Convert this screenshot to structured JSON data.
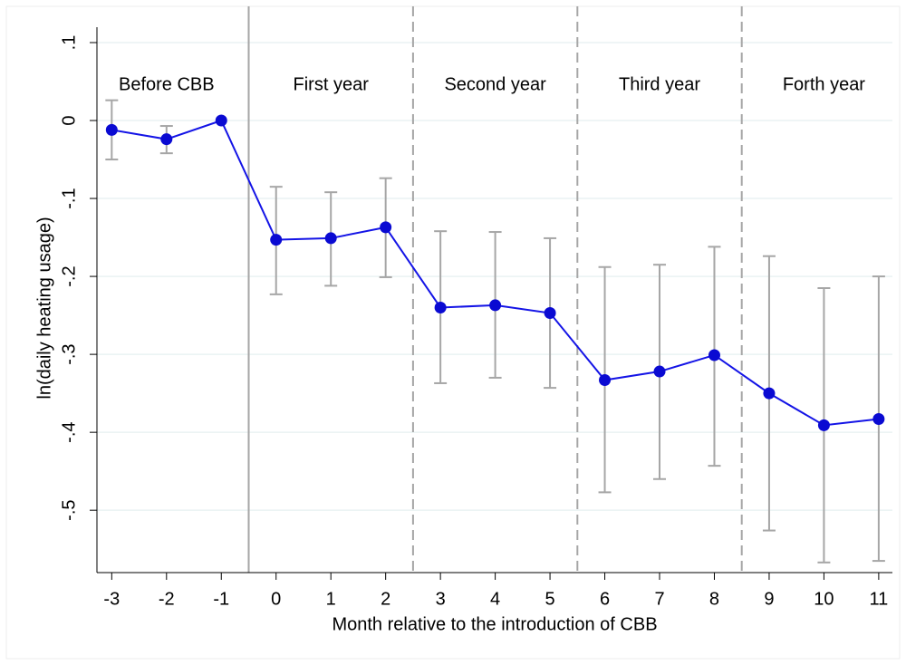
{
  "chart_data": {
    "type": "line",
    "x_label": "Month relative to the introduction of CBB",
    "y_label": "ln(daily heating usage)",
    "x": [
      -3,
      -2,
      -1,
      0,
      1,
      2,
      3,
      4,
      5,
      6,
      7,
      8,
      9,
      10,
      11
    ],
    "series": [
      {
        "color": "#1414e6",
        "marker_color": "#0a0ad2",
        "error_color": "#a6a6a6",
        "values": [
          -0.012,
          -0.024,
          0,
          -0.153,
          -0.151,
          -0.137,
          -0.24,
          -0.237,
          -0.247,
          -0.333,
          -0.322,
          -0.301,
          -0.35,
          -0.391,
          -0.383
        ],
        "ci_high": [
          0.026,
          -0.007,
          null,
          -0.085,
          -0.092,
          -0.074,
          -0.142,
          -0.143,
          -0.151,
          -0.188,
          -0.185,
          -0.162,
          -0.174,
          -0.215,
          -0.2
        ],
        "ci_low": [
          -0.05,
          -0.042,
          null,
          -0.223,
          -0.212,
          -0.201,
          -0.337,
          -0.33,
          -0.343,
          -0.477,
          -0.46,
          -0.443,
          -0.526,
          -0.567,
          -0.565
        ]
      }
    ],
    "xlim": [
      -3.27,
      11.25
    ],
    "ylim": [
      -0.58,
      0.143
    ],
    "xticks": [
      -3,
      -2,
      -1,
      0,
      1,
      2,
      3,
      4,
      5,
      6,
      7,
      8,
      9,
      10,
      11
    ],
    "yticks": [
      {
        "value": 0.1,
        "label": ".1"
      },
      0,
      {
        "value": -0.1,
        "label": "-.1"
      },
      {
        "value": -0.2,
        "label": "-.2"
      },
      {
        "value": -0.3,
        "label": "-.3"
      },
      {
        "value": -0.4,
        "label": "-.4"
      },
      {
        "value": -0.5,
        "label": "-.5"
      }
    ],
    "grid": true,
    "separators": [
      {
        "x": -0.5,
        "style": "solid"
      },
      {
        "x": 2.5,
        "style": "dashed"
      },
      {
        "x": 5.5,
        "style": "dashed"
      },
      {
        "x": 8.5,
        "style": "dashed"
      }
    ],
    "annotations": [
      {
        "x": -2,
        "text": "Before CBB"
      },
      {
        "x": 1,
        "text": "First year"
      },
      {
        "x": 4,
        "text": "Second year"
      },
      {
        "x": 7,
        "text": "Third year"
      },
      {
        "x": 10,
        "text": "Forth year"
      }
    ]
  }
}
